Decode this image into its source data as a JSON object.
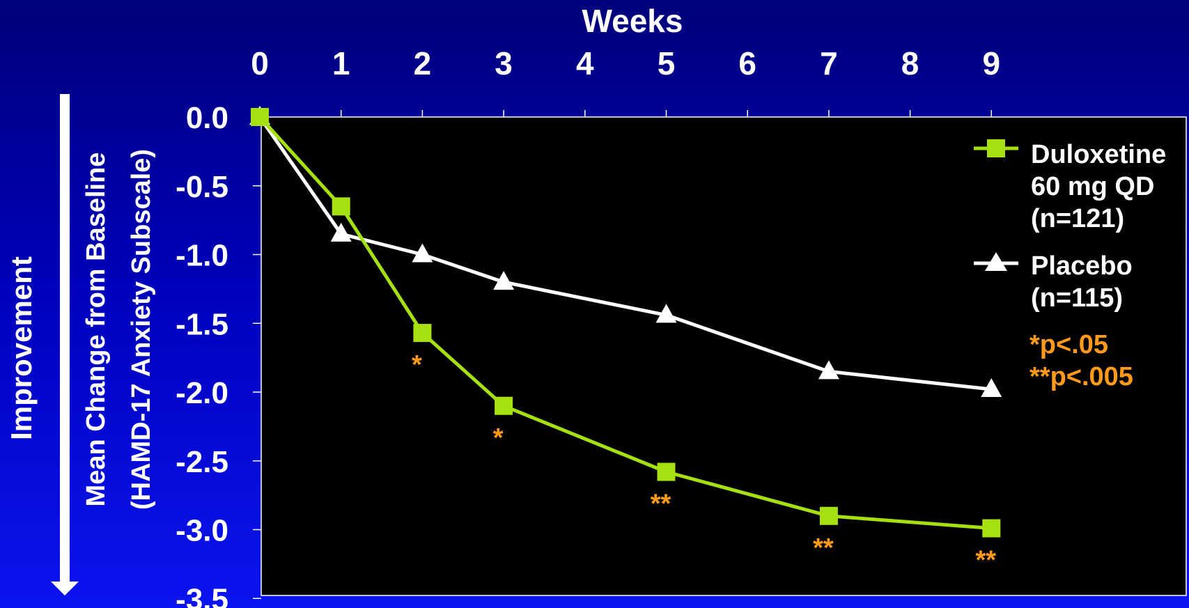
{
  "colors": {
    "background_top": "#00007a",
    "background_bottom": "#0a14f0",
    "plot_background": "#000000",
    "duloxetine": "#a6e010",
    "placebo": "#ffffff",
    "significance": "#ff9a1a",
    "text": "#ffffff"
  },
  "side_label": {
    "arrow_label": "Improvement",
    "arrow_icon": "arrow-down-icon"
  },
  "chart_data": {
    "type": "line",
    "xlabel": "Weeks",
    "ylabel_line1": "Mean Change from Baseline",
    "ylabel_line2": "(HAMD-17 Anxiety Subscale)",
    "x_ticks": [
      "0",
      "1",
      "2",
      "3",
      "4",
      "5",
      "6",
      "7",
      "8",
      "9"
    ],
    "xlim": [
      0,
      9
    ],
    "y_ticks": [
      "0.0",
      "-0.5",
      "-1.0",
      "-1.5",
      "-2.0",
      "-2.5",
      "-3.0",
      "-3.5"
    ],
    "ylim": [
      -3.5,
      0
    ],
    "x_axis_position": "top",
    "grid": false,
    "legend_position": "right",
    "series": [
      {
        "name_lines": [
          "Duloxetine",
          "60 mg QD",
          "(n=121)"
        ],
        "marker": "square",
        "color": "#a6e010",
        "x": [
          0,
          1,
          2,
          3,
          5,
          7,
          9
        ],
        "values": [
          0.0,
          -0.65,
          -1.57,
          -2.1,
          -2.58,
          -2.9,
          -2.99
        ]
      },
      {
        "name_lines": [
          "Placebo",
          "(n=115)"
        ],
        "marker": "triangle",
        "color": "#ffffff",
        "x": [
          0,
          1,
          2,
          3,
          5,
          7,
          9
        ],
        "values": [
          0.0,
          -0.85,
          -1.0,
          -1.2,
          -1.44,
          -1.85,
          -1.98
        ]
      }
    ],
    "significance_markers": [
      {
        "x": 2,
        "y": -1.57,
        "label": "*"
      },
      {
        "x": 3,
        "y": -2.1,
        "label": "*"
      },
      {
        "x": 5,
        "y": -2.58,
        "label": "**"
      },
      {
        "x": 7,
        "y": -2.9,
        "label": "**"
      },
      {
        "x": 9,
        "y": -2.99,
        "label": "**"
      }
    ],
    "annotations": [
      {
        "star": "*",
        "text": "p<.05"
      },
      {
        "star": "**",
        "text": "p<.005"
      }
    ]
  }
}
